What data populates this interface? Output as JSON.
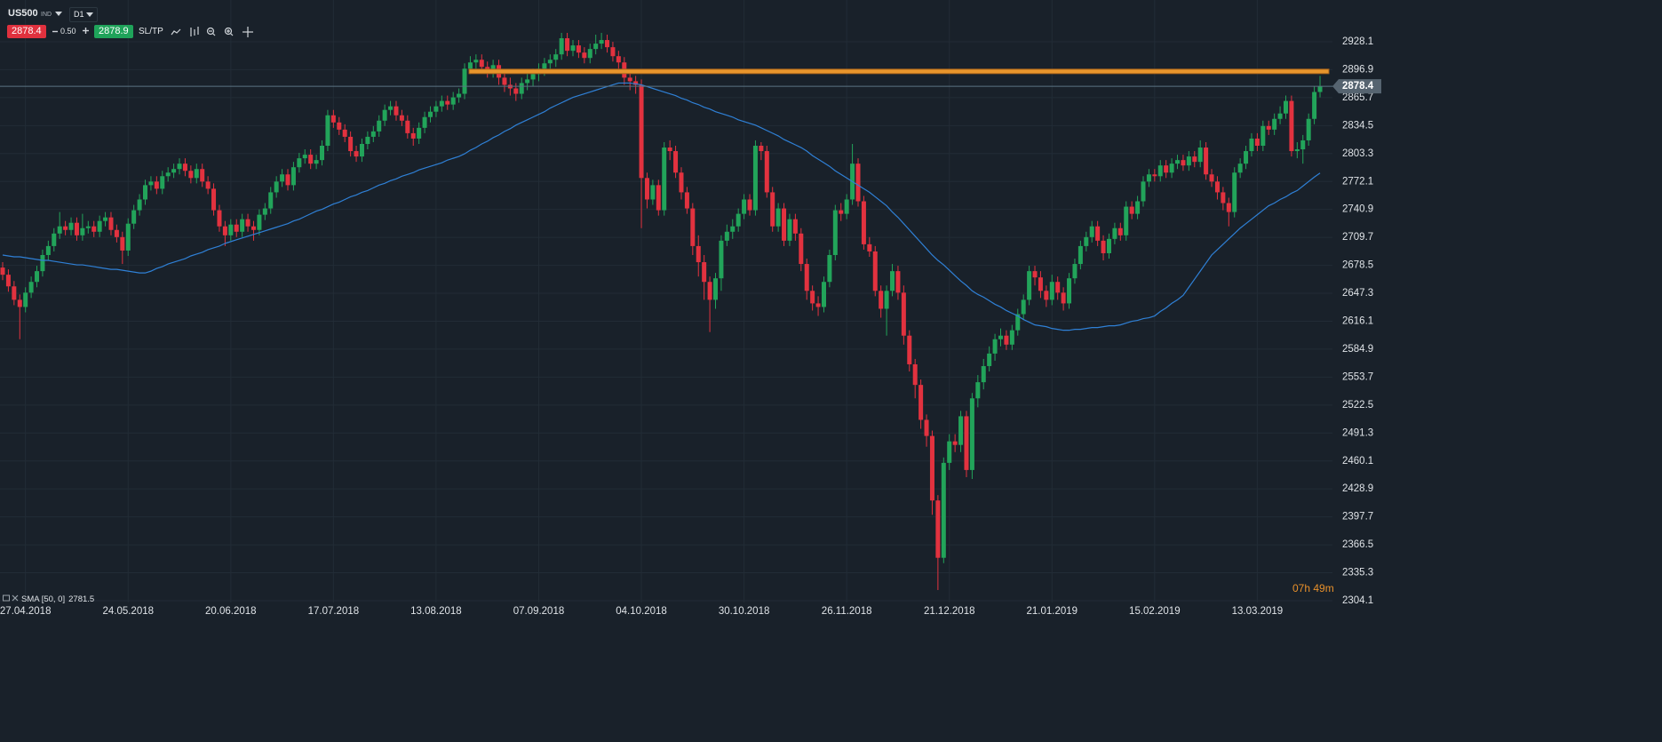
{
  "toolbar": {
    "symbol": "US500",
    "market": "IND",
    "interval": "D1",
    "sell": "2878.4",
    "spread": "0.50",
    "buy": "2878.9",
    "sltp": "SL/TP"
  },
  "countdown": "07h 49m",
  "chart_data": {
    "type": "candlestick",
    "categories": [
      null,
      null,
      null,
      null,
      "27.04.2018",
      null,
      null,
      null,
      null,
      null,
      null,
      null,
      null,
      null,
      null,
      null,
      null,
      null,
      null,
      null,
      null,
      null,
      "24.05.2018",
      null,
      null,
      null,
      null,
      null,
      null,
      null,
      null,
      null,
      null,
      null,
      null,
      null,
      null,
      null,
      null,
      null,
      "20.06.2018",
      null,
      null,
      null,
      null,
      null,
      null,
      null,
      null,
      null,
      null,
      null,
      null,
      null,
      null,
      null,
      null,
      null,
      "17.07.2018",
      null,
      null,
      null,
      null,
      null,
      null,
      null,
      null,
      null,
      null,
      null,
      null,
      null,
      null,
      null,
      null,
      null,
      "13.08.2018",
      null,
      null,
      null,
      null,
      null,
      null,
      null,
      null,
      null,
      null,
      null,
      null,
      null,
      null,
      null,
      null,
      null,
      "07.09.2018",
      null,
      null,
      null,
      null,
      null,
      null,
      null,
      null,
      null,
      null,
      null,
      null,
      null,
      null,
      null,
      null,
      null,
      "04.10.2018",
      null,
      null,
      null,
      null,
      null,
      null,
      null,
      null,
      null,
      null,
      null,
      null,
      null,
      null,
      null,
      null,
      null,
      "30.10.2018",
      null,
      null,
      null,
      null,
      null,
      null,
      null,
      null,
      null,
      null,
      null,
      null,
      null,
      null,
      null,
      null,
      null,
      "26.11.2018",
      null,
      null,
      null,
      null,
      null,
      null,
      null,
      null,
      null,
      null,
      null,
      null,
      null,
      null,
      null,
      null,
      null,
      "21.12.2018",
      null,
      null,
      null,
      null,
      null,
      null,
      null,
      null,
      null,
      null,
      null,
      null,
      null,
      null,
      null,
      null,
      null,
      "21.01.2019",
      null,
      null,
      null,
      null,
      null,
      null,
      null,
      null,
      null,
      null,
      null,
      null,
      null,
      null,
      null,
      null,
      null,
      "15.02.2019",
      null,
      null,
      null,
      null,
      null,
      null,
      null,
      null,
      null,
      null,
      null,
      null,
      null,
      null,
      null,
      null,
      null,
      "13.03.2019",
      null,
      null,
      null,
      null,
      null,
      null,
      null,
      null,
      null,
      null,
      null
    ],
    "open": [
      2676,
      2668,
      2655,
      2640,
      2632,
      2648,
      2660,
      2672,
      2690,
      2700,
      2714,
      2722,
      2718,
      2726,
      2712,
      2720,
      2722,
      2716,
      2728,
      2732,
      2718,
      2710,
      2695,
      2725,
      2740,
      2752,
      2768,
      2772,
      2764,
      2778,
      2782,
      2786,
      2792,
      2784,
      2776,
      2786,
      2772,
      2764,
      2740,
      2722,
      2712,
      2724,
      2716,
      2730,
      2722,
      2718,
      2735,
      2742,
      2760,
      2772,
      2780,
      2768,
      2788,
      2798,
      2802,
      2792,
      2796,
      2812,
      2846,
      2838,
      2830,
      2822,
      2806,
      2800,
      2814,
      2822,
      2828,
      2840,
      2852,
      2856,
      2846,
      2840,
      2826,
      2820,
      2832,
      2844,
      2850,
      2856,
      2862,
      2858,
      2866,
      2870,
      2898,
      2905,
      2908,
      2900,
      2895,
      2902,
      2888,
      2880,
      2876,
      2870,
      2882,
      2886,
      2892,
      2898,
      2904,
      2908,
      2914,
      2932,
      2918,
      2924,
      2916,
      2910,
      2920,
      2926,
      2930,
      2922,
      2912,
      2905,
      2888,
      2884,
      2880,
      2776,
      2752,
      2768,
      2740,
      2810,
      2806,
      2782,
      2760,
      2742,
      2700,
      2682,
      2660,
      2640,
      2664,
      2706,
      2716,
      2722,
      2736,
      2752,
      2740,
      2812,
      2806,
      2760,
      2722,
      2742,
      2706,
      2730,
      2714,
      2680,
      2650,
      2636,
      2632,
      2660,
      2690,
      2740,
      2736,
      2752,
      2792,
      2750,
      2702,
      2694,
      2650,
      2630,
      2650,
      2672,
      2648,
      2600,
      2568,
      2545,
      2506,
      2488,
      2416,
      2352,
      2458,
      2482,
      2478,
      2510,
      2450,
      2530,
      2548,
      2566,
      2580,
      2596,
      2600,
      2590,
      2606,
      2624,
      2640,
      2672,
      2665,
      2650,
      2640,
      2660,
      2648,
      2636,
      2664,
      2680,
      2700,
      2710,
      2722,
      2706,
      2692,
      2708,
      2720,
      2712,
      2744,
      2736,
      2750,
      2772,
      2780,
      2778,
      2790,
      2782,
      2792,
      2796,
      2790,
      2800,
      2794,
      2810,
      2780,
      2772,
      2760,
      2748,
      2738,
      2782,
      2792,
      2806,
      2820,
      2812,
      2834,
      2830,
      2842,
      2848,
      2862,
      2806,
      2808,
      2818,
      2842,
      2872
    ],
    "high": [
      2682,
      2674,
      2661,
      2646,
      2654,
      2666,
      2678,
      2696,
      2706,
      2720,
      2738,
      2728,
      2732,
      2732,
      2736,
      2728,
      2728,
      2734,
      2738,
      2738,
      2724,
      2716,
      2731,
      2746,
      2758,
      2774,
      2778,
      2778,
      2784,
      2788,
      2792,
      2798,
      2798,
      2790,
      2792,
      2792,
      2778,
      2770,
      2746,
      2728,
      2730,
      2730,
      2736,
      2736,
      2728,
      2741,
      2748,
      2766,
      2778,
      2786,
      2786,
      2794,
      2804,
      2808,
      2808,
      2802,
      2818,
      2852,
      2852,
      2844,
      2836,
      2828,
      2812,
      2820,
      2828,
      2834,
      2846,
      2858,
      2862,
      2862,
      2852,
      2846,
      2832,
      2838,
      2850,
      2856,
      2862,
      2868,
      2868,
      2872,
      2876,
      2904,
      2912,
      2914,
      2914,
      2906,
      2908,
      2908,
      2894,
      2888,
      2882,
      2888,
      2892,
      2898,
      2904,
      2910,
      2914,
      2920,
      2938,
      2938,
      2930,
      2930,
      2922,
      2926,
      2936,
      2938,
      2936,
      2928,
      2918,
      2911,
      2896,
      2890,
      2886,
      2782,
      2774,
      2774,
      2816,
      2818,
      2812,
      2788,
      2766,
      2748,
      2712,
      2690,
      2666,
      2670,
      2712,
      2724,
      2730,
      2742,
      2758,
      2758,
      2818,
      2816,
      2812,
      2766,
      2748,
      2748,
      2736,
      2736,
      2720,
      2686,
      2656,
      2644,
      2666,
      2696,
      2746,
      2748,
      2758,
      2814,
      2798,
      2756,
      2710,
      2700,
      2656,
      2656,
      2680,
      2678,
      2656,
      2606,
      2574,
      2551,
      2512,
      2494,
      2422,
      2464,
      2490,
      2490,
      2516,
      2516,
      2536,
      2556,
      2574,
      2588,
      2602,
      2608,
      2606,
      2612,
      2630,
      2646,
      2678,
      2678,
      2672,
      2656,
      2668,
      2666,
      2654,
      2670,
      2686,
      2706,
      2716,
      2728,
      2728,
      2712,
      2714,
      2726,
      2726,
      2750,
      2750,
      2756,
      2778,
      2786,
      2786,
      2796,
      2796,
      2798,
      2802,
      2802,
      2806,
      2806,
      2818,
      2816,
      2786,
      2778,
      2766,
      2754,
      2788,
      2798,
      2812,
      2826,
      2826,
      2840,
      2840,
      2848,
      2856,
      2868,
      2868,
      2816,
      2824,
      2848,
      2878,
      2890
    ],
    "low": [
      2662,
      2649,
      2634,
      2596,
      2626,
      2642,
      2654,
      2666,
      2684,
      2694,
      2708,
      2712,
      2712,
      2706,
      2706,
      2714,
      2710,
      2710,
      2722,
      2712,
      2704,
      2680,
      2689,
      2719,
      2734,
      2746,
      2762,
      2758,
      2758,
      2772,
      2776,
      2780,
      2778,
      2770,
      2770,
      2766,
      2758,
      2734,
      2716,
      2700,
      2706,
      2710,
      2710,
      2716,
      2706,
      2712,
      2729,
      2736,
      2754,
      2766,
      2762,
      2762,
      2782,
      2792,
      2786,
      2786,
      2790,
      2806,
      2832,
      2824,
      2816,
      2800,
      2794,
      2794,
      2808,
      2816,
      2822,
      2834,
      2846,
      2840,
      2834,
      2820,
      2812,
      2814,
      2826,
      2838,
      2844,
      2850,
      2852,
      2852,
      2860,
      2864,
      2892,
      2898,
      2894,
      2888,
      2888,
      2880,
      2872,
      2868,
      2862,
      2864,
      2874,
      2878,
      2884,
      2890,
      2898,
      2900,
      2908,
      2912,
      2912,
      2910,
      2904,
      2904,
      2914,
      2920,
      2916,
      2906,
      2898,
      2880,
      2874,
      2870,
      2720,
      2742,
      2746,
      2734,
      2734,
      2796,
      2776,
      2752,
      2736,
      2690,
      2666,
      2640,
      2604,
      2630,
      2650,
      2700,
      2708,
      2716,
      2730,
      2734,
      2734,
      2796,
      2754,
      2716,
      2716,
      2700,
      2700,
      2706,
      2672,
      2640,
      2628,
      2622,
      2626,
      2654,
      2684,
      2728,
      2730,
      2746,
      2744,
      2696,
      2688,
      2644,
      2620,
      2600,
      2644,
      2640,
      2590,
      2560,
      2530,
      2496,
      2476,
      2400,
      2316,
      2346,
      2450,
      2470,
      2470,
      2442,
      2440,
      2520,
      2540,
      2560,
      2572,
      2588,
      2584,
      2584,
      2600,
      2618,
      2634,
      2656,
      2642,
      2632,
      2634,
      2640,
      2628,
      2630,
      2658,
      2674,
      2694,
      2704,
      2700,
      2684,
      2686,
      2702,
      2706,
      2706,
      2730,
      2730,
      2744,
      2766,
      2772,
      2772,
      2776,
      2776,
      2786,
      2784,
      2784,
      2788,
      2788,
      2774,
      2766,
      2752,
      2740,
      2722,
      2732,
      2776,
      2786,
      2800,
      2806,
      2806,
      2824,
      2824,
      2836,
      2842,
      2800,
      2798,
      2792,
      2812,
      2836,
      2866
    ],
    "close": [
      2668,
      2655,
      2640,
      2632,
      2648,
      2660,
      2672,
      2690,
      2700,
      2714,
      2722,
      2718,
      2726,
      2712,
      2720,
      2722,
      2716,
      2728,
      2732,
      2718,
      2710,
      2695,
      2725,
      2740,
      2752,
      2768,
      2772,
      2764,
      2778,
      2782,
      2786,
      2792,
      2784,
      2776,
      2786,
      2772,
      2764,
      2740,
      2722,
      2712,
      2724,
      2716,
      2730,
      2722,
      2718,
      2735,
      2742,
      2760,
      2772,
      2780,
      2768,
      2788,
      2798,
      2802,
      2792,
      2796,
      2812,
      2846,
      2838,
      2830,
      2822,
      2806,
      2800,
      2814,
      2822,
      2828,
      2840,
      2852,
      2856,
      2846,
      2840,
      2826,
      2820,
      2832,
      2844,
      2850,
      2856,
      2862,
      2858,
      2866,
      2870,
      2898,
      2905,
      2908,
      2900,
      2895,
      2902,
      2888,
      2880,
      2876,
      2870,
      2882,
      2886,
      2892,
      2898,
      2904,
      2908,
      2914,
      2932,
      2918,
      2924,
      2916,
      2910,
      2920,
      2926,
      2930,
      2922,
      2912,
      2905,
      2888,
      2884,
      2880,
      2776,
      2752,
      2768,
      2740,
      2810,
      2806,
      2782,
      2760,
      2742,
      2700,
      2682,
      2660,
      2640,
      2664,
      2706,
      2716,
      2722,
      2736,
      2752,
      2740,
      2812,
      2806,
      2760,
      2722,
      2742,
      2706,
      2730,
      2714,
      2680,
      2650,
      2636,
      2632,
      2660,
      2690,
      2740,
      2736,
      2752,
      2792,
      2750,
      2702,
      2694,
      2650,
      2630,
      2650,
      2672,
      2648,
      2600,
      2568,
      2545,
      2506,
      2488,
      2416,
      2352,
      2458,
      2482,
      2478,
      2510,
      2450,
      2530,
      2548,
      2566,
      2580,
      2596,
      2600,
      2590,
      2606,
      2624,
      2640,
      2672,
      2665,
      2650,
      2640,
      2660,
      2648,
      2636,
      2664,
      2680,
      2700,
      2710,
      2722,
      2706,
      2692,
      2708,
      2720,
      2712,
      2744,
      2736,
      2750,
      2772,
      2780,
      2778,
      2790,
      2782,
      2792,
      2796,
      2790,
      2800,
      2794,
      2810,
      2780,
      2772,
      2760,
      2748,
      2738,
      2782,
      2792,
      2806,
      2820,
      2812,
      2834,
      2830,
      2842,
      2848,
      2862,
      2806,
      2808,
      2818,
      2842,
      2872,
      2878.4
    ],
    "series": [
      {
        "name": "SMA [50, 0]",
        "color": "#2f80d6",
        "values": [
          2690,
          2689,
          2688,
          2688,
          2687,
          2686,
          2685,
          2684,
          2684,
          2683,
          2682,
          2681,
          2680,
          2679,
          2679,
          2678,
          2677,
          2676,
          2675,
          2674,
          2674,
          2673,
          2672,
          2671,
          2670,
          2670,
          2672,
          2675,
          2677,
          2680,
          2682,
          2684,
          2686,
          2689,
          2691,
          2693,
          2696,
          2698,
          2700,
          2703,
          2705,
          2707,
          2709,
          2711,
          2713,
          2715,
          2717,
          2719,
          2721,
          2723,
          2725,
          2728,
          2730,
          2733,
          2736,
          2739,
          2741,
          2744,
          2747,
          2749,
          2752,
          2755,
          2757,
          2760,
          2762,
          2765,
          2768,
          2770,
          2773,
          2775,
          2778,
          2780,
          2782,
          2785,
          2787,
          2789,
          2791,
          2793,
          2796,
          2798,
          2800,
          2803,
          2807,
          2810,
          2814,
          2817,
          2821,
          2824,
          2828,
          2831,
          2835,
          2838,
          2841,
          2844,
          2847,
          2850,
          2854,
          2857,
          2860,
          2863,
          2866,
          2868,
          2870,
          2872,
          2874,
          2876,
          2878,
          2880,
          2882,
          2882,
          2882,
          2881,
          2880,
          2878,
          2876,
          2874,
          2872,
          2870,
          2868,
          2865,
          2863,
          2860,
          2858,
          2855,
          2853,
          2850,
          2848,
          2846,
          2844,
          2841,
          2839,
          2837,
          2835,
          2832,
          2829,
          2826,
          2823,
          2819,
          2816,
          2813,
          2810,
          2806,
          2801,
          2797,
          2793,
          2789,
          2784,
          2780,
          2776,
          2772,
          2768,
          2764,
          2760,
          2755,
          2750,
          2745,
          2738,
          2732,
          2725,
          2718,
          2711,
          2704,
          2697,
          2690,
          2684,
          2679,
          2673,
          2667,
          2661,
          2656,
          2650,
          2646,
          2643,
          2639,
          2635,
          2632,
          2628,
          2625,
          2622,
          2618,
          2615,
          2612,
          2611,
          2610,
          2608,
          2607,
          2606,
          2606,
          2607,
          2607,
          2608,
          2609,
          2609,
          2610,
          2611,
          2611,
          2612,
          2614,
          2616,
          2617,
          2619,
          2620,
          2622,
          2627,
          2631,
          2636,
          2640,
          2645,
          2654,
          2663,
          2672,
          2681,
          2690,
          2696,
          2702,
          2708,
          2714,
          2720,
          2725,
          2730,
          2735,
          2740,
          2745,
          2748,
          2752,
          2755,
          2759,
          2762,
          2767,
          2772,
          2777,
          2781.5
        ]
      }
    ],
    "level": 2895,
    "level_color": "#e8952c",
    "up_color": "#22a45a",
    "down_color": "#e2323f",
    "ylim": [
      2302.1,
      2974.7
    ],
    "yticks": [
      2928.1,
      2896.9,
      2865.7,
      2834.5,
      2803.3,
      2772.1,
      2740.9,
      2709.7,
      2678.5,
      2647.3,
      2616.1,
      2584.9,
      2553.7,
      2522.5,
      2491.3,
      2460.1,
      2428.9,
      2397.7,
      2366.5,
      2335.3,
      2304.1
    ],
    "grid": true
  }
}
